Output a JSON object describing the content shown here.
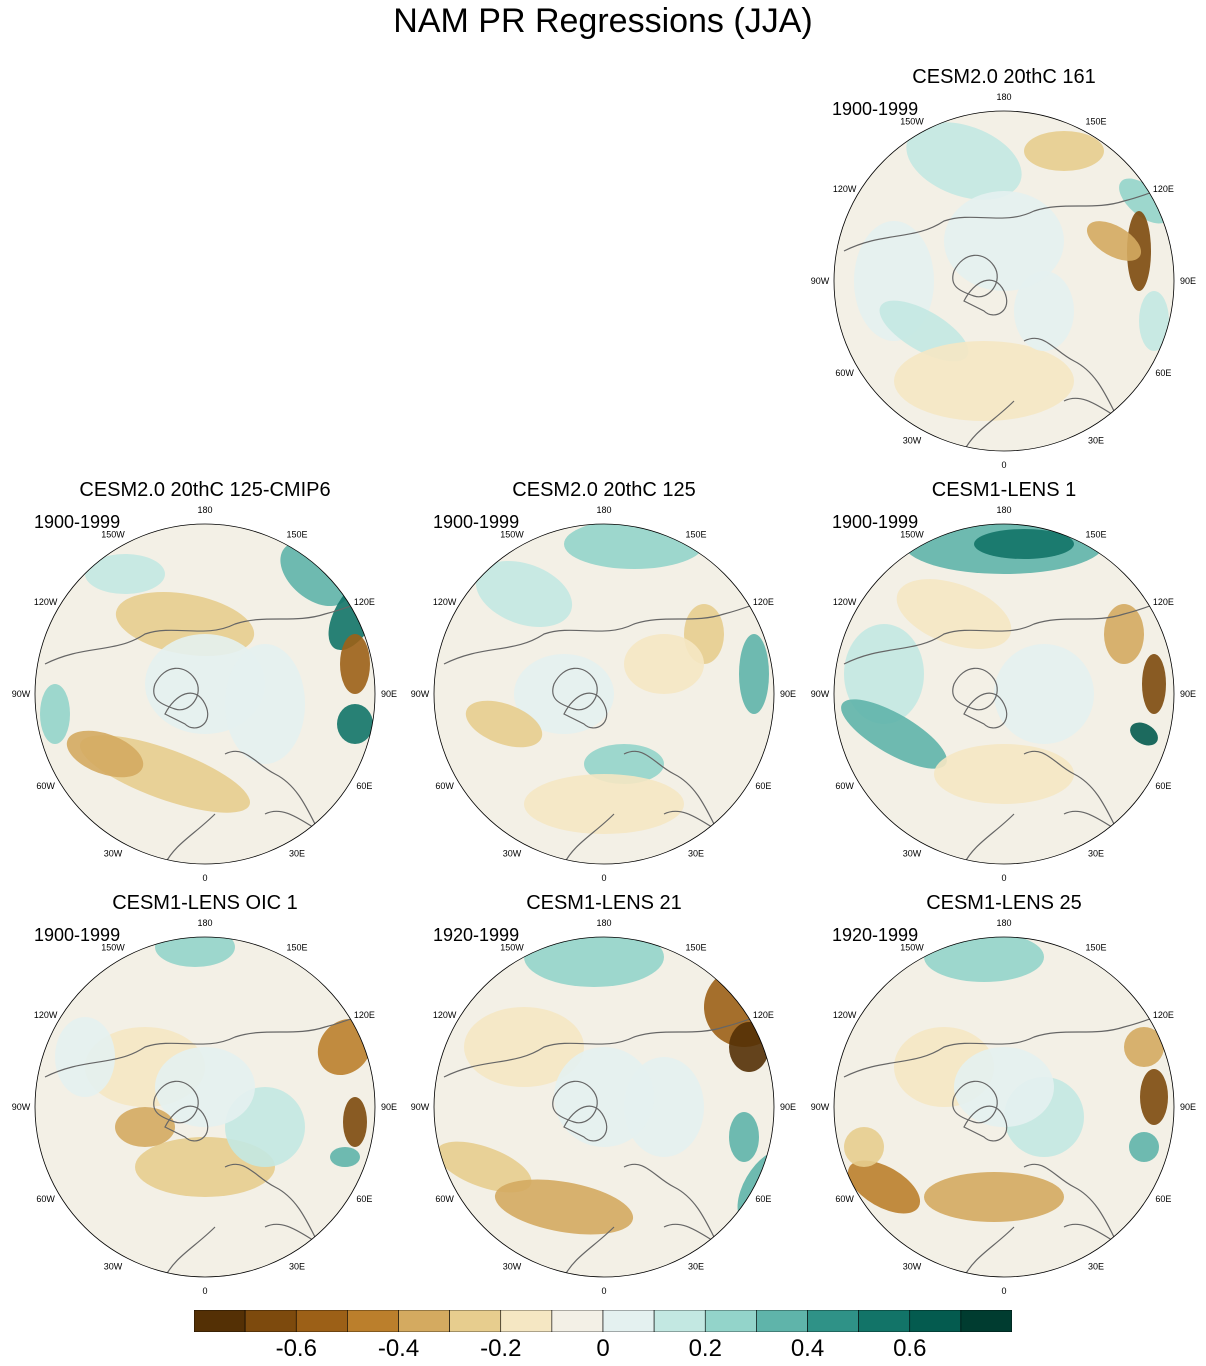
{
  "title": "NAM PR Regressions (JJA)",
  "longitude_labels": [
    "180",
    "150E",
    "120E",
    "90E",
    "60E",
    "30E",
    "0",
    "30W",
    "60W",
    "90W",
    "120W",
    "150W"
  ],
  "panels": [
    {
      "title": "CESM2.0 20thC 161",
      "period": "1900-1999"
    },
    {
      "title": "CESM2.0 20thC 125-CMIP6",
      "period": "1900-1999"
    },
    {
      "title": "CESM2.0 20thC 125",
      "period": "1900-1999"
    },
    {
      "title": "CESM1-LENS 1",
      "period": "1900-1999"
    },
    {
      "title": "CESM1-LENS OIC 1",
      "period": "1900-1999"
    },
    {
      "title": "CESM1-LENS 21",
      "period": "1920-1999"
    },
    {
      "title": "CESM1-LENS 25",
      "period": "1920-1999"
    }
  ],
  "colorbar": {
    "colors": [
      "#543005",
      "#7d4a0d",
      "#9c6017",
      "#bb7f2c",
      "#d4aa60",
      "#e7cd8e",
      "#f5e7c3",
      "#f3f0e6",
      "#e4f1f0",
      "#c3e8e2",
      "#93d4ca",
      "#5fb4aa",
      "#2f9287",
      "#127468",
      "#045b4f",
      "#003c30"
    ],
    "tick_labels": [
      "-0.6",
      "-0.4",
      "-0.2",
      "0",
      "0.2",
      "0.4",
      "0.6"
    ]
  }
}
